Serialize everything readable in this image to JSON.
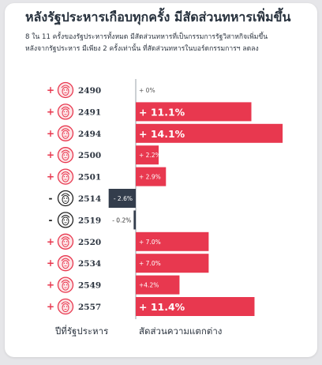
{
  "title": "หลังรัฐประหารเกือบทุกครั้ง มีสัดส่วนทหารเพิ่มขึ้น",
  "subtitle": [
    "8 ใน 11 ครั้งของรัฐประหารทั้งหมด มีสัดส่วนทหารที่เป็นกรรมการรัฐวิสาหกิจเพิ่มขึ้น",
    "หลังจากรัฐประหาร มีเพียง 2 ครั้งเท่านั้น ที่สัดส่วนทหารในบอร์ดกรรมการฯ ลดลง"
  ],
  "footer": {
    "left": "ปีที่รัฐประหาร",
    "right": "สัดส่วนความแตกต่าง"
  },
  "colors": {
    "positive": "#e8384f",
    "negative": "#333d4c",
    "zero_line": "#9aa1aa",
    "text": "#2d3540"
  },
  "chart_data": {
    "type": "bar",
    "orientation": "horizontal-diverging",
    "categories": [
      "2490",
      "2491",
      "2494",
      "2500",
      "2501",
      "2514",
      "2519",
      "2520",
      "2534",
      "2549",
      "2557"
    ],
    "values": [
      0,
      11.1,
      14.1,
      2.2,
      2.9,
      -2.6,
      -0.2,
      7.0,
      7.0,
      4.2,
      11.4
    ],
    "labels": [
      "+ 0%",
      "+ 11.1%",
      "+ 14.1%",
      "+ 2.2%",
      "+ 2.9%",
      "- 2.6%",
      "- 0.2%",
      "+ 7.0%",
      "+ 7.0%",
      "+4.2%",
      "+ 11.4%"
    ],
    "signs": [
      "+",
      "+",
      "+",
      "+",
      "+",
      "-",
      "-",
      "+",
      "+",
      "+",
      "+"
    ],
    "icons": [
      "face-red-icon",
      "face-red-icon",
      "face-red-icon",
      "face-red-icon",
      "face-red-icon",
      "face-black-icon",
      "face-black-icon",
      "face-red-icon",
      "face-red-icon",
      "face-red-icon",
      "face-red-icon"
    ],
    "xlabel": "สัดส่วนความแตกต่าง",
    "ylabel": "ปีที่รัฐประหาร"
  }
}
